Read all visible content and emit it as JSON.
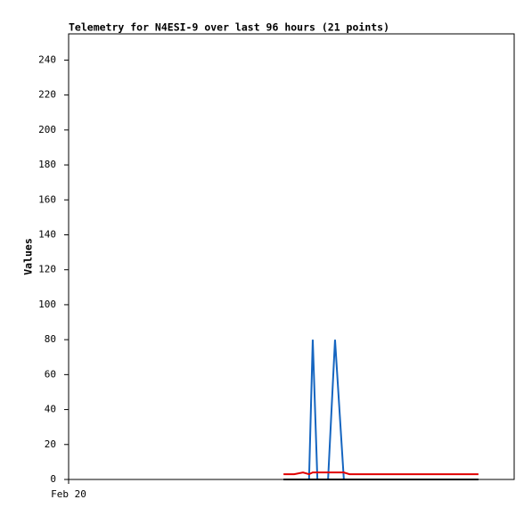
{
  "chart_data": {
    "type": "line",
    "title": "Telemetry for N4ESI-9 over last 96 hours (21 points)",
    "y_label": "Values",
    "x": [
      46.3,
      48.6,
      50.5,
      51.8,
      52.6,
      53.6,
      54.7,
      55.9,
      57.4,
      59.3,
      60.5,
      63.0,
      65.9,
      69.7,
      73.5,
      77.4,
      81.2,
      84.1,
      86.0,
      87.2,
      88.3
    ],
    "series": [
      {
        "color": "#1565c0",
        "values": [
          0,
          0,
          0,
          0,
          80,
          0,
          0,
          0,
          80,
          0,
          0,
          0,
          0,
          0,
          0,
          0,
          0,
          0,
          0,
          0,
          0
        ]
      },
      {
        "color": "#e00000",
        "values": [
          3,
          3,
          4,
          3,
          4,
          4,
          4,
          4,
          4,
          4,
          3,
          3,
          3,
          3,
          3,
          3,
          3,
          3,
          3,
          3,
          3
        ]
      },
      {
        "color": "#000000",
        "values": [
          0,
          0,
          0,
          0,
          0,
          0,
          0,
          0,
          0,
          0,
          0,
          0,
          0,
          0,
          0,
          0,
          0,
          0,
          0,
          0,
          0
        ]
      }
    ],
    "xlim": [
      0,
      96
    ],
    "xticks": [
      {
        "value": 0,
        "label": "Feb 20"
      }
    ],
    "ylim": [
      0,
      255
    ],
    "yticks": [
      0,
      20,
      40,
      60,
      80,
      100,
      120,
      140,
      160,
      180,
      200,
      220,
      240
    ]
  }
}
